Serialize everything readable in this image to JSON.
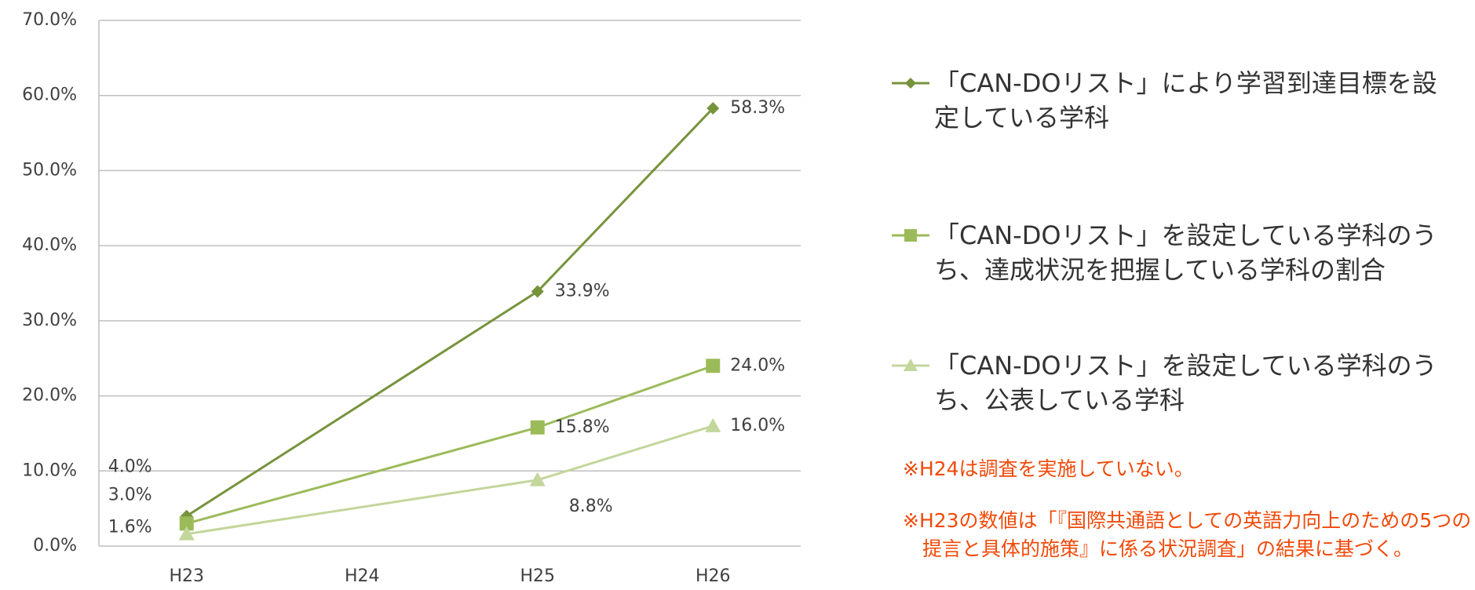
{
  "chart_data": {
    "type": "line",
    "categories": [
      "H23",
      "H24",
      "H25",
      "H26"
    ],
    "series": [
      {
        "name": "「CAN-DOリスト」により学習到達目標を設定している学科",
        "color": "#77933c",
        "marker": "diamond",
        "values": [
          4.0,
          null,
          33.9,
          58.3
        ],
        "value_labels": [
          "4.0%",
          null,
          "33.9%",
          "58.3%"
        ]
      },
      {
        "name": "「CAN-DOリスト」を設定している学科のうち、達成状況を把握している学科の割合",
        "color": "#9bbb59",
        "marker": "square",
        "values": [
          3.0,
          null,
          15.8,
          24.0
        ],
        "value_labels": [
          "3.0%",
          null,
          "15.8%",
          "24.0%"
        ]
      },
      {
        "name": "「CAN-DOリスト」を設定している学科のうち、公表している学科",
        "color": "#c3d69b",
        "marker": "triangle",
        "values": [
          1.6,
          null,
          8.8,
          16.0
        ],
        "value_labels": [
          "1.6%",
          null,
          "8.8%",
          "16.0%"
        ]
      }
    ],
    "ylim": [
      0,
      70
    ],
    "yticks": [
      {
        "value": 0,
        "label": "0.0%"
      },
      {
        "value": 10,
        "label": "10.0%"
      },
      {
        "value": 20,
        "label": "20.0%"
      },
      {
        "value": 30,
        "label": "30.0%"
      },
      {
        "value": 40,
        "label": "40.0%"
      },
      {
        "value": 50,
        "label": "50.0%"
      },
      {
        "value": 60,
        "label": "60.0%"
      },
      {
        "value": 70,
        "label": "70.0%"
      }
    ],
    "grid": true,
    "legend": "right",
    "notes": [
      "※H24は調査を実施していない。",
      "※H23の数値は「『国際共通語としての英語力向上のための5つの提言と具体的施策』に係る状況調査」の結果に基づく。"
    ]
  }
}
